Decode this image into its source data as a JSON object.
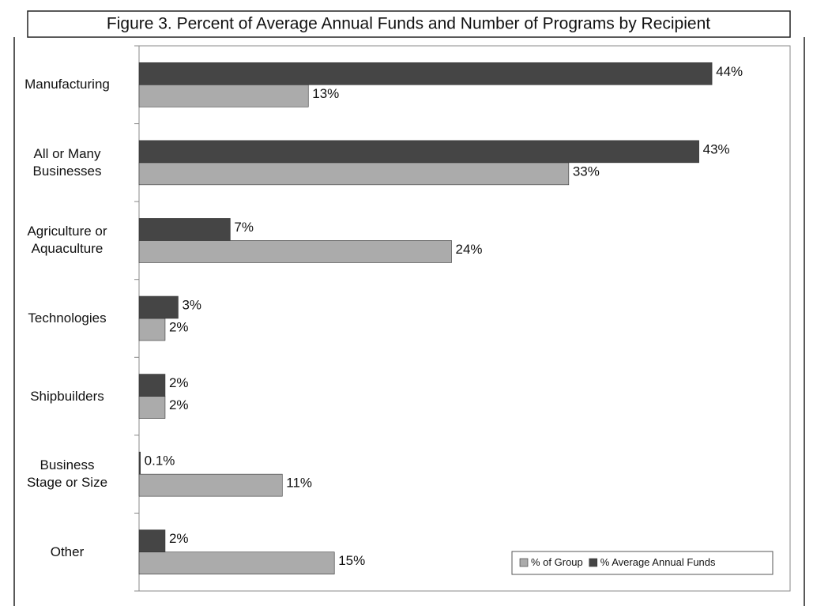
{
  "chart_data": {
    "type": "bar",
    "orientation": "horizontal",
    "title": "Figure 3.  Percent of Average Annual Funds and Number of Programs by Recipient",
    "categories": [
      "Manufacturing",
      "All or Many\nBusinesses",
      "Agriculture or\nAquaculture",
      "Technologies",
      "Shipbuilders",
      "Business\nStage or Size",
      "Other"
    ],
    "series": [
      {
        "name": "% of Group",
        "color": "#ababab",
        "values": [
          13,
          33,
          24,
          2,
          2,
          11,
          15
        ],
        "value_labels": [
          "13%",
          "33%",
          "24%",
          "2%",
          "2%",
          "11%",
          "15%"
        ]
      },
      {
        "name": "% Average Annual Funds",
        "color": "#454545",
        "values": [
          44,
          43,
          7,
          3,
          2,
          0.1,
          2
        ],
        "value_labels": [
          "44%",
          "43%",
          "7%",
          "3%",
          "2%",
          "0.1%",
          "2%"
        ]
      }
    ],
    "xlim": [
      0,
      50
    ],
    "legend": "lower right"
  }
}
